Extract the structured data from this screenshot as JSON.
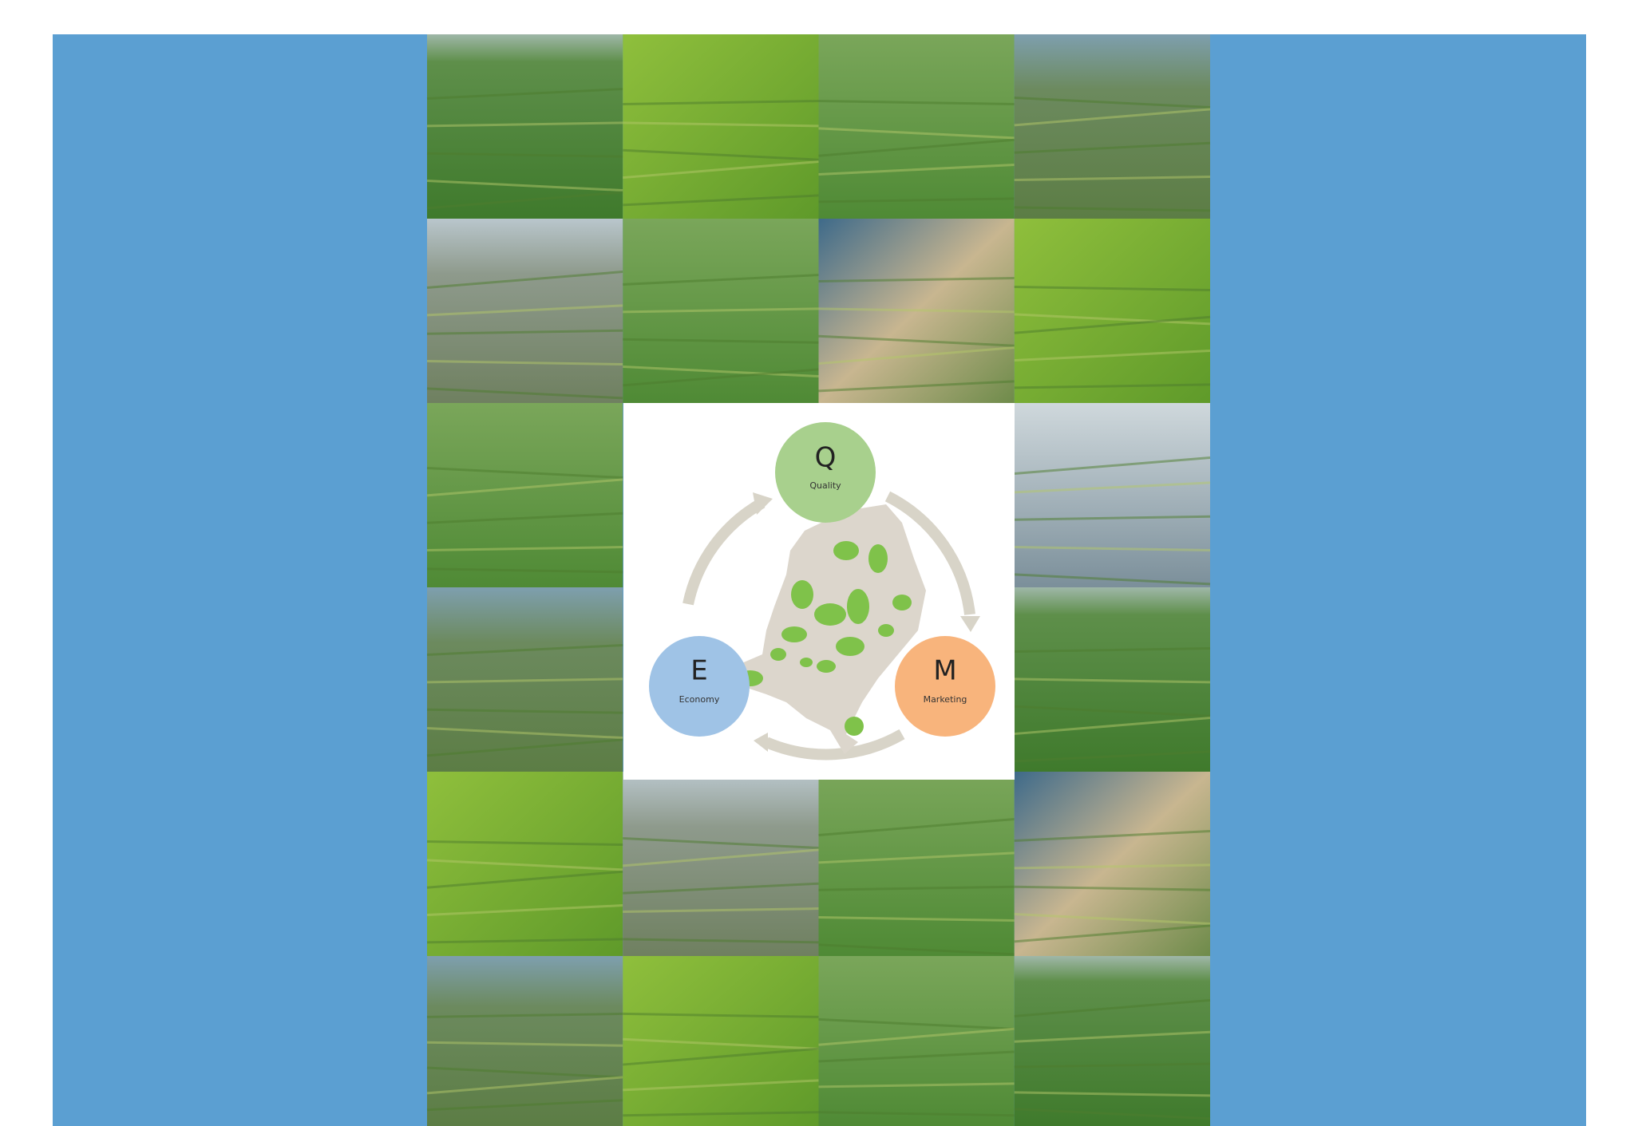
{
  "diagram": {
    "nodes": [
      {
        "letter": "Q",
        "label": "Quality"
      },
      {
        "letter": "E",
        "label": "Economy"
      },
      {
        "letter": "M",
        "label": "Marketing"
      }
    ]
  }
}
